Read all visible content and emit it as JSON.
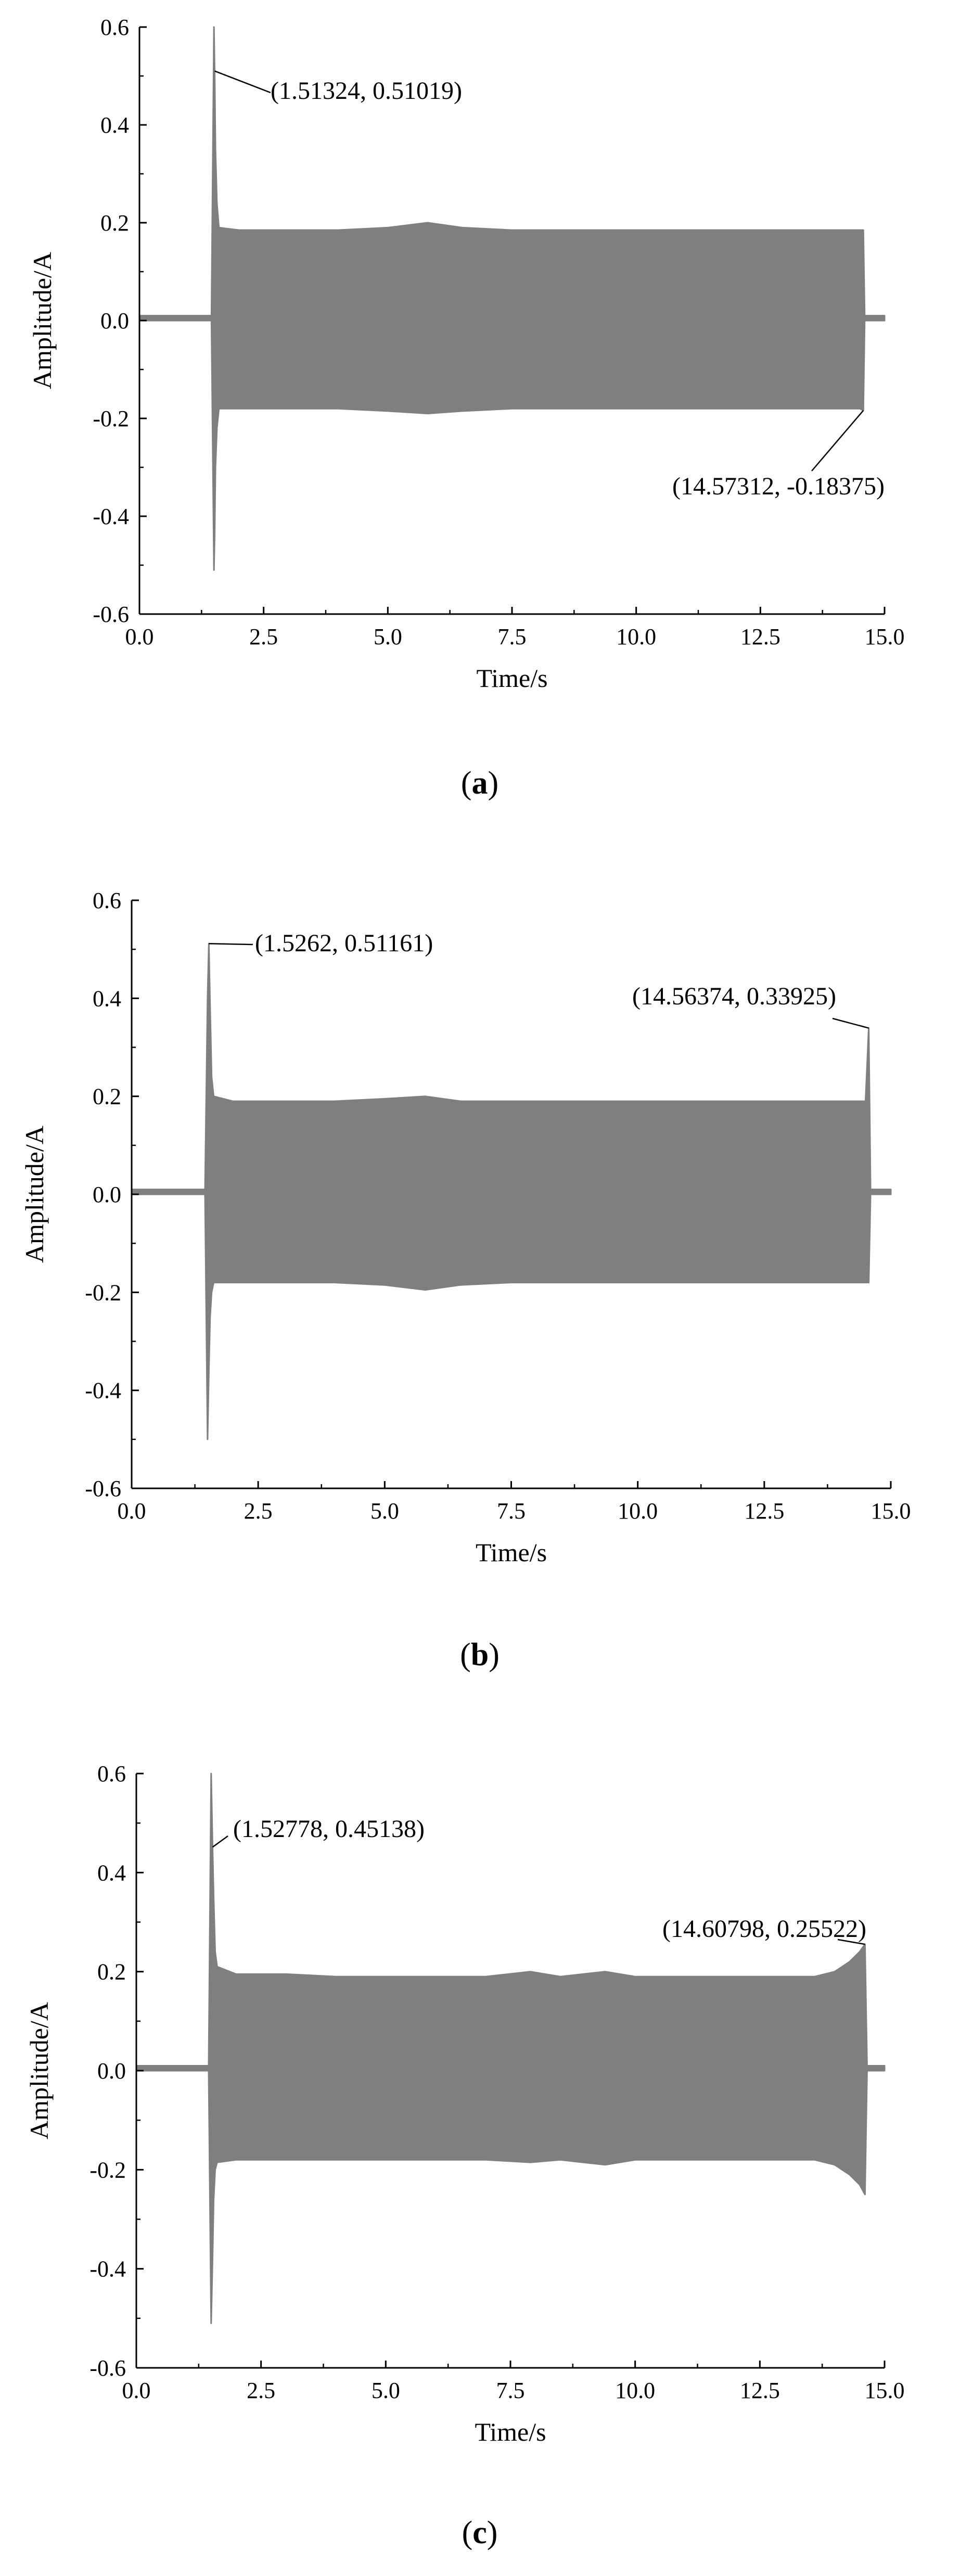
{
  "chart_data": [
    {
      "panel": "a",
      "type": "line",
      "xlabel": "Time/s",
      "ylabel": "Amplitude/A",
      "xlim": [
        0,
        15
      ],
      "ylim": [
        -0.6,
        0.6
      ],
      "xticks": [
        "0.0",
        "2.5",
        "5.0",
        "7.5",
        "10.0",
        "12.5",
        "15.0"
      ],
      "yticks": [
        "0.6",
        "0.4",
        "0.2",
        "0.0",
        "-0.2",
        "-0.4",
        "-0.6"
      ],
      "grid": false,
      "series": [
        {
          "color": "#7f7f7f",
          "description_points": "amplitude envelope (upper/lower) of oscillating current",
          "x": [
            0,
            1.45,
            1.5,
            1.51324,
            1.53,
            1.56,
            1.6,
            2.0,
            3.0,
            4.0,
            5.0,
            5.8,
            6.5,
            7.5,
            9.0,
            10.5,
            12.0,
            13.5,
            14.5,
            14.57312,
            14.6,
            15.0
          ],
          "upper": [
            0.01,
            0.01,
            0.6,
            0.51019,
            0.35,
            0.24,
            0.19,
            0.185,
            0.185,
            0.185,
            0.19,
            0.2,
            0.19,
            0.185,
            0.185,
            0.185,
            0.185,
            0.185,
            0.185,
            0.185,
            0.01,
            0.01
          ],
          "lower": [
            0.0,
            0.0,
            -0.51,
            -0.44,
            -0.3,
            -0.22,
            -0.18,
            -0.18,
            -0.18,
            -0.18,
            -0.185,
            -0.19,
            -0.185,
            -0.18,
            -0.18,
            -0.18,
            -0.18,
            -0.18,
            -0.18,
            -0.18375,
            0.0,
            0.0
          ]
        }
      ],
      "annotations": [
        {
          "text": "(1.51324, 0.51019)",
          "x": 1.51324,
          "y": 0.51019
        },
        {
          "text": "(14.57312, -0.18375)",
          "x": 14.57312,
          "y": -0.18375
        }
      ],
      "caption_open": "(",
      "caption_letter": "a",
      "caption_close": ")"
    },
    {
      "panel": "b",
      "type": "line",
      "xlabel": "Time/s",
      "ylabel": "Amplitude/A",
      "xlim": [
        0,
        15
      ],
      "ylim": [
        -0.6,
        0.6
      ],
      "xticks": [
        "0.0",
        "2.5",
        "5.0",
        "7.5",
        "10.0",
        "12.5",
        "15.0"
      ],
      "yticks": [
        "0.6",
        "0.4",
        "0.2",
        "0.0",
        "-0.2",
        "-0.4",
        "-0.6"
      ],
      "grid": false,
      "series": [
        {
          "color": "#7f7f7f",
          "x": [
            0,
            1.45,
            1.5,
            1.5262,
            1.55,
            1.58,
            1.62,
            2.0,
            3.0,
            4.0,
            5.0,
            5.8,
            6.5,
            7.5,
            9.0,
            10.5,
            12.0,
            13.5,
            14.5,
            14.56374,
            14.6,
            15.0
          ],
          "upper": [
            0.01,
            0.01,
            0.4,
            0.51161,
            0.38,
            0.24,
            0.2,
            0.19,
            0.19,
            0.19,
            0.195,
            0.2,
            0.19,
            0.19,
            0.19,
            0.19,
            0.19,
            0.19,
            0.19,
            0.33925,
            0.01,
            0.01
          ],
          "lower": [
            0.0,
            0.0,
            -0.5,
            -0.36,
            -0.25,
            -0.2,
            -0.18,
            -0.18,
            -0.18,
            -0.18,
            -0.185,
            -0.195,
            -0.185,
            -0.18,
            -0.18,
            -0.18,
            -0.18,
            -0.18,
            -0.18,
            -0.18,
            0.0,
            0.0
          ]
        }
      ],
      "annotations": [
        {
          "text": "(1.5262, 0.51161)",
          "x": 1.5262,
          "y": 0.51161
        },
        {
          "text": "(14.56374, 0.33925)",
          "x": 14.56374,
          "y": 0.33925
        }
      ],
      "caption_open": "(",
      "caption_letter": "b",
      "caption_close": ")"
    },
    {
      "panel": "c",
      "type": "line",
      "xlabel": "Time/s",
      "ylabel": "Amplitude/A",
      "xlim": [
        0,
        15
      ],
      "ylim": [
        -0.6,
        0.6
      ],
      "xticks": [
        "0.0",
        "2.5",
        "5.0",
        "7.5",
        "10.0",
        "12.5",
        "15.0"
      ],
      "yticks": [
        "0.6",
        "0.4",
        "0.2",
        "0.0",
        "-0.2",
        "-0.4",
        "-0.6"
      ],
      "grid": false,
      "series": [
        {
          "color": "#7f7f7f",
          "x": [
            0,
            1.45,
            1.5,
            1.52778,
            1.55,
            1.58,
            1.62,
            2.0,
            3.0,
            4.0,
            5.0,
            6.0,
            7.0,
            7.9,
            8.5,
            9.4,
            10.0,
            11.0,
            12.0,
            13.0,
            13.6,
            14.0,
            14.3,
            14.5,
            14.60798,
            14.65,
            15.0
          ],
          "upper": [
            0.01,
            0.01,
            0.6,
            0.45138,
            0.35,
            0.24,
            0.21,
            0.195,
            0.195,
            0.19,
            0.19,
            0.19,
            0.19,
            0.2,
            0.19,
            0.2,
            0.19,
            0.19,
            0.19,
            0.19,
            0.19,
            0.2,
            0.22,
            0.24,
            0.25522,
            0.01,
            0.01
          ],
          "lower": [
            0.0,
            0.0,
            -0.51,
            -0.38,
            -0.26,
            -0.2,
            -0.185,
            -0.18,
            -0.18,
            -0.18,
            -0.18,
            -0.18,
            -0.18,
            -0.185,
            -0.18,
            -0.19,
            -0.18,
            -0.18,
            -0.18,
            -0.18,
            -0.18,
            -0.19,
            -0.21,
            -0.23,
            -0.25,
            0.0,
            0.0
          ]
        }
      ],
      "annotations": [
        {
          "text": "(1.52778, 0.45138)",
          "x": 1.52778,
          "y": 0.45138
        },
        {
          "text": "(14.60798, 0.25522)",
          "x": 14.60798,
          "y": 0.25522
        }
      ],
      "caption_open": "(",
      "caption_letter": "c",
      "caption_close": ")"
    }
  ]
}
